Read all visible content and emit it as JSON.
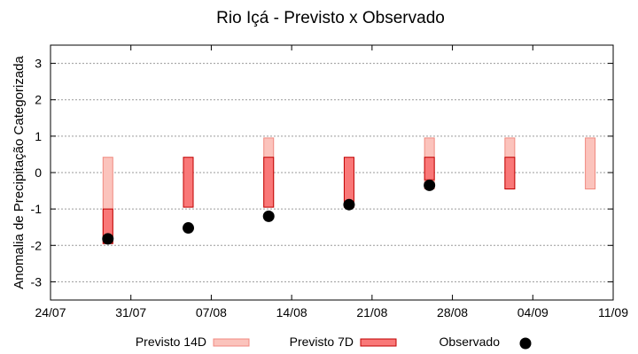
{
  "chart_data": {
    "type": "bar",
    "title": "Rio Içá - Previsto x Observado",
    "xlabel": "",
    "ylabel": "Anomalia de Precipitação Categorizada",
    "x_axis": {
      "type": "date",
      "min": "2018-07-24",
      "max": "2018-09-11",
      "ticks": [
        "24/07",
        "31/07",
        "07/08",
        "14/08",
        "21/08",
        "28/08",
        "04/09",
        "11/09"
      ]
    },
    "ylim": [
      -3.5,
      3.5
    ],
    "yticks": [
      -3,
      -2,
      -1,
      0,
      1,
      2,
      3
    ],
    "grid": true,
    "legend_position": "bottom",
    "colors": {
      "p14_fill": "#fbc3bc",
      "p14_stroke": "#f08a80",
      "p7_fill": "#f97878",
      "p7_stroke": "#c00000",
      "obs": "#000000"
    },
    "series": [
      {
        "name": "Previsto 14D",
        "kind": "range",
        "points": [
          {
            "date": "2018-07-29",
            "low": -1.95,
            "high": 0.42
          },
          {
            "date": "2018-08-12",
            "low": -0.95,
            "high": 0.95
          },
          {
            "date": "2018-08-26",
            "low": -0.45,
            "high": 0.95
          },
          {
            "date": "2018-09-02",
            "low": -0.45,
            "high": 0.95
          },
          {
            "date": "2018-09-09",
            "low": -0.45,
            "high": 0.95
          }
        ]
      },
      {
        "name": "Previsto 7D",
        "kind": "range",
        "points": [
          {
            "date": "2018-07-29",
            "low": -1.95,
            "high": -1.0
          },
          {
            "date": "2018-08-05",
            "low": -0.95,
            "high": 0.42
          },
          {
            "date": "2018-08-12",
            "low": -0.95,
            "high": 0.42
          },
          {
            "date": "2018-08-19",
            "low": -0.95,
            "high": 0.42
          },
          {
            "date": "2018-08-26",
            "low": -0.2,
            "high": 0.42
          },
          {
            "date": "2018-09-02",
            "low": -0.45,
            "high": 0.42
          }
        ]
      },
      {
        "name": "Observado",
        "kind": "points",
        "points": [
          {
            "date": "2018-07-29",
            "y": -1.82
          },
          {
            "date": "2018-08-05",
            "y": -1.52
          },
          {
            "date": "2018-08-12",
            "y": -1.2
          },
          {
            "date": "2018-08-19",
            "y": -0.88
          },
          {
            "date": "2018-08-26",
            "y": -0.35
          }
        ]
      }
    ]
  }
}
